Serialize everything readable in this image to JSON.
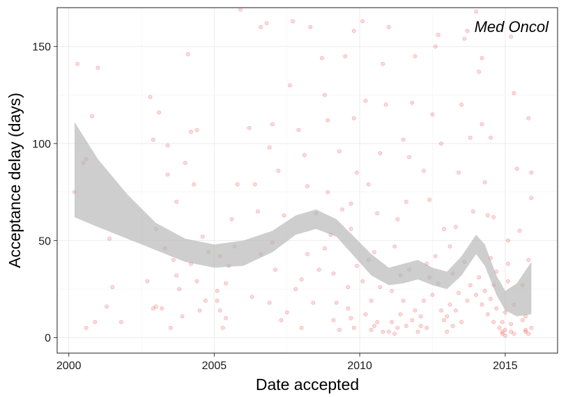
{
  "chart_data": {
    "type": "scatter",
    "title": "",
    "annotation": "Med Oncol",
    "xlabel": "Date accepted",
    "ylabel": "Acceptance delay (days)",
    "xlim": [
      1999.6,
      2016.8
    ],
    "ylim": [
      -8,
      170
    ],
    "x_ticks": [
      2000,
      2005,
      2010,
      2015
    ],
    "y_ticks": [
      0,
      50,
      100,
      150
    ],
    "grid": true,
    "point_color": "#e00000",
    "point_opacity": 0.14,
    "band_color": "#b3b3b3",
    "smooth_band": {
      "x": [
        2000.2,
        2001.0,
        2002.0,
        2003.0,
        2004.0,
        2005.0,
        2006.0,
        2007.0,
        2007.8,
        2008.5,
        2009.2,
        2009.8,
        2010.4,
        2011.0,
        2011.5,
        2012.0,
        2012.5,
        2013.0,
        2013.5,
        2014.0,
        2014.3,
        2014.7,
        2015.0,
        2015.4,
        2015.9
      ],
      "upper": [
        111,
        92,
        74,
        59,
        51,
        48,
        50,
        55,
        63,
        66,
        61,
        52,
        43,
        36,
        38,
        40,
        36,
        34,
        42,
        53,
        48,
        32,
        24,
        28,
        39
      ],
      "lower": [
        62,
        57,
        51,
        45,
        39,
        36,
        37,
        44,
        53,
        56,
        52,
        42,
        32,
        27,
        28,
        30,
        27,
        25,
        32,
        43,
        37,
        22,
        14,
        11,
        12
      ]
    },
    "points": [
      [
        2000.3,
        141
      ],
      [
        2001.0,
        139
      ],
      [
        2000.8,
        114
      ],
      [
        2000.5,
        90
      ],
      [
        2000.2,
        75
      ],
      [
        2000.6,
        92
      ],
      [
        2001.4,
        51
      ],
      [
        2001.8,
        8
      ],
      [
        2001.3,
        16
      ],
      [
        2001.5,
        26
      ],
      [
        2000.6,
        5
      ],
      [
        2000.9,
        8
      ],
      [
        2002.8,
        124
      ],
      [
        2002.9,
        102
      ],
      [
        2003.1,
        116
      ],
      [
        2003.4,
        84
      ],
      [
        2003.7,
        70
      ],
      [
        2003.0,
        56
      ],
      [
        2003.3,
        46
      ],
      [
        2002.9,
        15
      ],
      [
        2003.0,
        16
      ],
      [
        2003.6,
        40
      ],
      [
        2003.8,
        25
      ],
      [
        2002.7,
        29
      ],
      [
        2003.2,
        15
      ],
      [
        2003.5,
        5
      ],
      [
        2003.9,
        11
      ],
      [
        2004.1,
        146
      ],
      [
        2004.2,
        106
      ],
      [
        2004.4,
        107
      ],
      [
        2004.0,
        90
      ],
      [
        2004.3,
        79
      ],
      [
        2004.6,
        52
      ],
      [
        2004.2,
        38
      ],
      [
        2004.7,
        19
      ],
      [
        2004.5,
        14
      ],
      [
        2004.4,
        29
      ],
      [
        2004.8,
        44
      ],
      [
        2003.7,
        32
      ],
      [
        2003.4,
        99
      ],
      [
        2005.1,
        19
      ],
      [
        2005.2,
        14
      ],
      [
        2005.3,
        5
      ],
      [
        2005.4,
        28
      ],
      [
        2005.5,
        37
      ],
      [
        2005.6,
        61
      ],
      [
        2005.8,
        79
      ],
      [
        2005.9,
        169
      ],
      [
        2005.1,
        24
      ],
      [
        2005.7,
        47
      ],
      [
        2005.4,
        10
      ],
      [
        2005.2,
        42
      ],
      [
        2006.2,
        108
      ],
      [
        2006.4,
        79
      ],
      [
        2006.6,
        43
      ],
      [
        2006.3,
        21
      ],
      [
        2006.6,
        160
      ],
      [
        2006.8,
        162
      ],
      [
        2006.9,
        98
      ],
      [
        2007.0,
        110
      ],
      [
        2007.2,
        86
      ],
      [
        2007.4,
        63
      ],
      [
        2007.1,
        35
      ],
      [
        2006.9,
        18
      ],
      [
        2007.3,
        9
      ],
      [
        2006.5,
        65
      ],
      [
        2007.0,
        49
      ],
      [
        2007.6,
        130
      ],
      [
        2007.7,
        163
      ],
      [
        2007.9,
        107
      ],
      [
        2008.1,
        94
      ],
      [
        2008.3,
        160
      ],
      [
        2008.5,
        64
      ],
      [
        2008.2,
        43
      ],
      [
        2008.0,
        30
      ],
      [
        2008.4,
        18
      ],
      [
        2007.8,
        25
      ],
      [
        2008.6,
        35
      ],
      [
        2008.2,
        78
      ],
      [
        2007.5,
        13
      ],
      [
        2008.0,
        5
      ],
      [
        2008.7,
        144
      ],
      [
        2008.8,
        125
      ],
      [
        2008.9,
        112
      ],
      [
        2008.9,
        75
      ],
      [
        2009.0,
        53
      ],
      [
        2009.1,
        33
      ],
      [
        2009.2,
        18
      ],
      [
        2009.3,
        96
      ],
      [
        2009.4,
        66
      ],
      [
        2009.5,
        145
      ],
      [
        2009.1,
        9
      ],
      [
        2008.8,
        46
      ],
      [
        2009.3,
        4
      ],
      [
        2009.6,
        26
      ],
      [
        2009.7,
        56
      ],
      [
        2009.8,
        113
      ],
      [
        2009.9,
        85
      ],
      [
        2009.7,
        10
      ],
      [
        2009.8,
        5
      ],
      [
        2009.6,
        15
      ],
      [
        2009.9,
        37
      ],
      [
        2009.7,
        69
      ],
      [
        2009.8,
        158
      ],
      [
        2010.1,
        163
      ],
      [
        2010.2,
        122
      ],
      [
        2010.3,
        40
      ],
      [
        2010.4,
        19
      ],
      [
        2010.5,
        6
      ],
      [
        2010.6,
        64
      ],
      [
        2010.7,
        95
      ],
      [
        2010.8,
        141
      ],
      [
        2010.9,
        120
      ],
      [
        2010.2,
        12
      ],
      [
        2010.4,
        4
      ],
      [
        2010.6,
        8
      ],
      [
        2010.8,
        3
      ],
      [
        2010.1,
        29
      ],
      [
        2010.3,
        79
      ],
      [
        2010.5,
        44
      ],
      [
        2010.7,
        26
      ],
      [
        2011.0,
        3
      ],
      [
        2011.1,
        8
      ],
      [
        2011.2,
        2
      ],
      [
        2011.3,
        5
      ],
      [
        2011.4,
        12
      ],
      [
        2011.5,
        19
      ],
      [
        2011.6,
        70
      ],
      [
        2011.7,
        93
      ],
      [
        2011.8,
        121
      ],
      [
        2011.9,
        145
      ],
      [
        2011.0,
        160
      ],
      [
        2011.2,
        47
      ],
      [
        2011.4,
        32
      ],
      [
        2011.6,
        6
      ],
      [
        2011.8,
        9
      ],
      [
        2011.1,
        24
      ],
      [
        2011.3,
        61
      ],
      [
        2011.5,
        102
      ],
      [
        2011.7,
        35
      ],
      [
        2011.9,
        14
      ],
      [
        2012.0,
        3
      ],
      [
        2012.1,
        6
      ],
      [
        2012.2,
        19
      ],
      [
        2012.3,
        38
      ],
      [
        2012.4,
        71
      ],
      [
        2012.5,
        115
      ],
      [
        2012.6,
        150
      ],
      [
        2012.7,
        156
      ],
      [
        2012.8,
        100
      ],
      [
        2012.9,
        56
      ],
      [
        2012.1,
        11
      ],
      [
        2012.3,
        5
      ],
      [
        2012.5,
        22
      ],
      [
        2012.7,
        28
      ],
      [
        2012.9,
        9
      ],
      [
        2012.2,
        86
      ],
      [
        2012.4,
        31
      ],
      [
        2012.6,
        42
      ],
      [
        2012.8,
        14
      ],
      [
        2013.0,
        3
      ],
      [
        2013.1,
        17
      ],
      [
        2013.2,
        33
      ],
      [
        2013.3,
        57
      ],
      [
        2013.4,
        85
      ],
      [
        2013.5,
        120
      ],
      [
        2013.6,
        154
      ],
      [
        2013.7,
        158
      ],
      [
        2013.8,
        103
      ],
      [
        2013.9,
        65
      ],
      [
        2013.0,
        11
      ],
      [
        2013.2,
        6
      ],
      [
        2013.4,
        23
      ],
      [
        2013.6,
        39
      ],
      [
        2013.8,
        27
      ],
      [
        2013.1,
        47
      ],
      [
        2013.3,
        14
      ],
      [
        2013.5,
        8
      ],
      [
        2013.7,
        19
      ],
      [
        2014.0,
        168
      ],
      [
        2014.1,
        137
      ],
      [
        2014.2,
        110
      ],
      [
        2014.3,
        80
      ],
      [
        2014.4,
        63
      ],
      [
        2014.5,
        41
      ],
      [
        2014.6,
        27
      ],
      [
        2014.7,
        15
      ],
      [
        2014.0,
        22
      ],
      [
        2014.1,
        31
      ],
      [
        2014.2,
        17
      ],
      [
        2014.3,
        24
      ],
      [
        2014.4,
        12
      ],
      [
        2014.5,
        20
      ],
      [
        2014.6,
        8
      ],
      [
        2014.7,
        34
      ],
      [
        2014.8,
        5
      ],
      [
        2014.9,
        3
      ],
      [
        2014.2,
        144
      ],
      [
        2014.5,
        103
      ],
      [
        2014.6,
        62
      ],
      [
        2014.9,
        2
      ],
      [
        2015.0,
        4
      ],
      [
        2015.0,
        1
      ],
      [
        2014.9,
        8
      ],
      [
        2015.0,
        13
      ],
      [
        2015.1,
        50
      ],
      [
        2015.1,
        38
      ],
      [
        2015.1,
        29
      ],
      [
        2015.2,
        3
      ],
      [
        2015.3,
        2
      ],
      [
        2015.2,
        7
      ],
      [
        2015.3,
        17
      ],
      [
        2015.2,
        155
      ],
      [
        2015.3,
        126
      ],
      [
        2015.4,
        87
      ],
      [
        2015.5,
        55
      ],
      [
        2015.6,
        9
      ],
      [
        2015.7,
        4
      ],
      [
        2015.8,
        2
      ],
      [
        2015.6,
        27
      ],
      [
        2015.7,
        11
      ],
      [
        2015.8,
        40
      ],
      [
        2015.9,
        85
      ],
      [
        2015.9,
        72
      ],
      [
        2015.8,
        113
      ],
      [
        2015.9,
        5
      ],
      [
        2015.7,
        3
      ]
    ]
  }
}
